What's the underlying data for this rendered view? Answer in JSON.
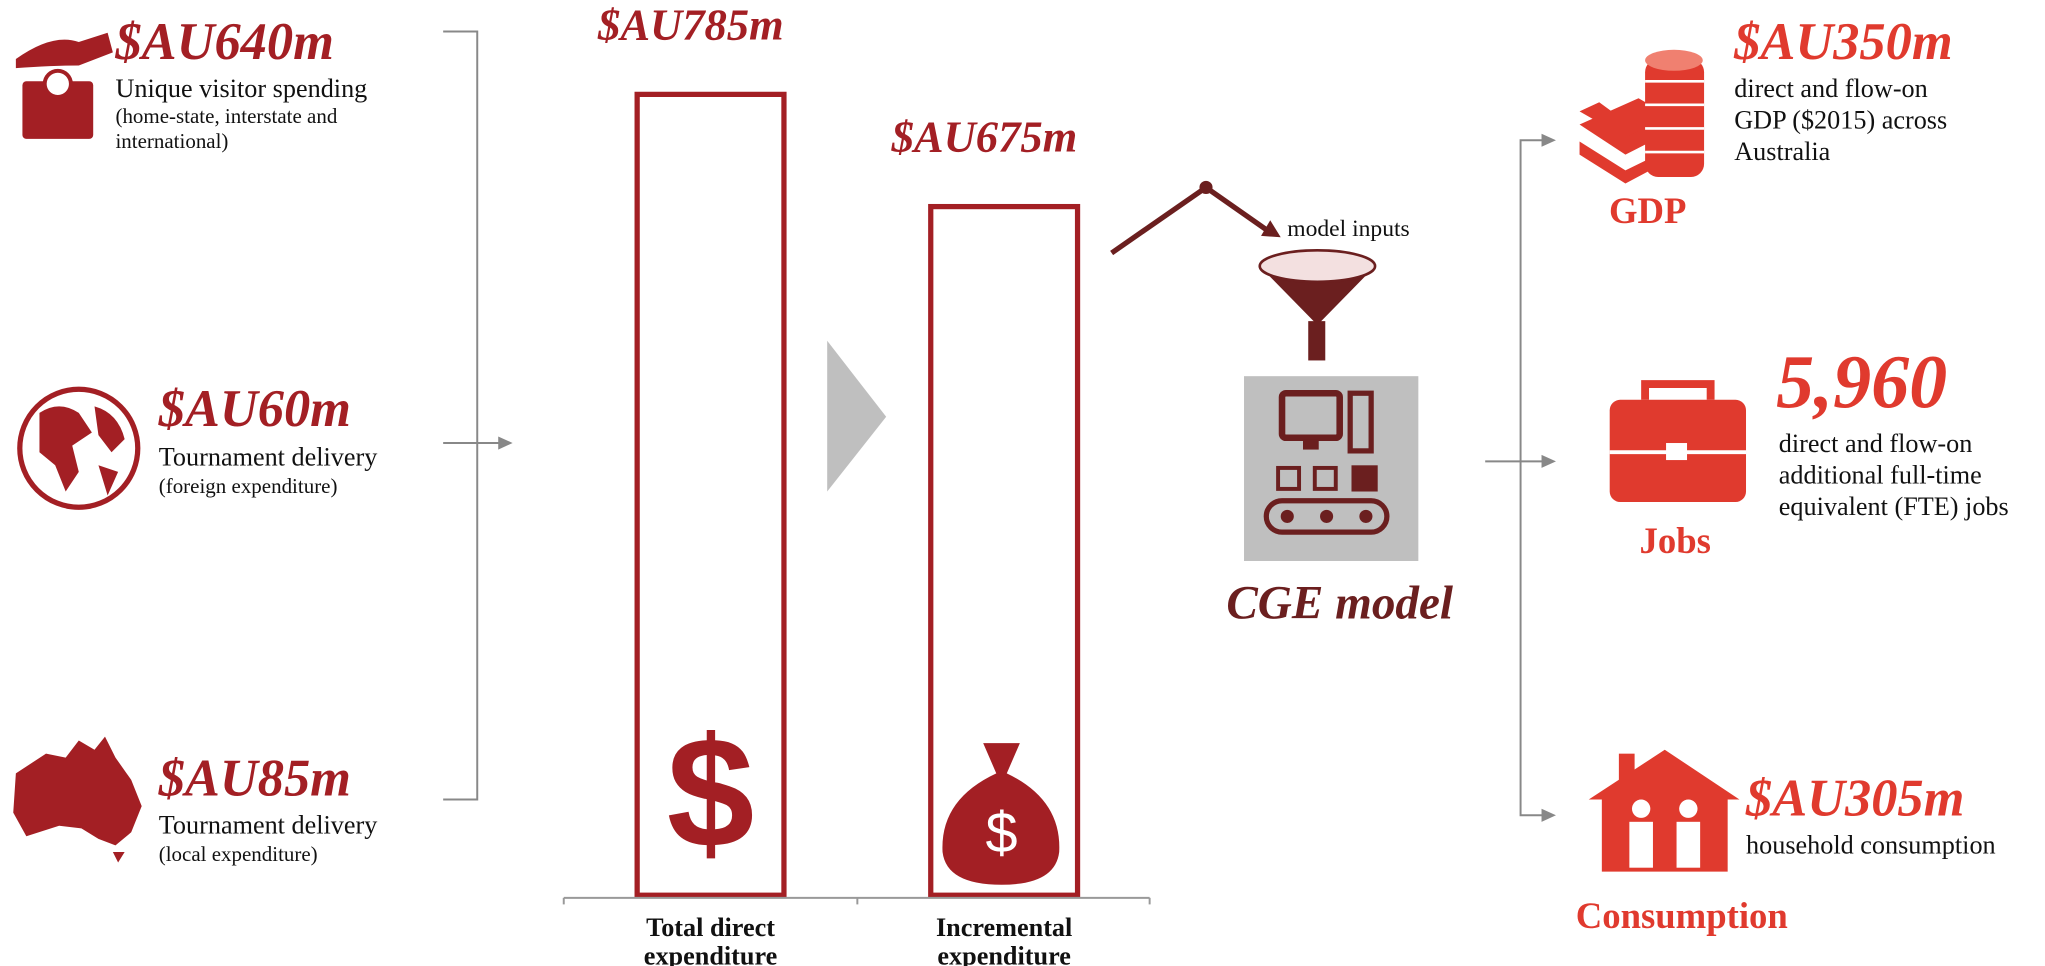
{
  "inputs": [
    {
      "amount": "$AU640m",
      "label": "Unique visitor spending",
      "note": [
        "(home-state, interstate and",
        "international)"
      ]
    },
    {
      "amount": "$AU60m",
      "label": "Tournament delivery",
      "note": [
        "(foreign expenditure)"
      ]
    },
    {
      "amount": "$AU85m",
      "label": "Tournament delivery",
      "note": [
        "(local expenditure)"
      ]
    }
  ],
  "bars": [
    {
      "value": 785,
      "label": "$AU785m",
      "category": [
        "Total direct",
        "expenditure"
      ]
    },
    {
      "value": 675,
      "label": "$AU675m",
      "category": [
        "Incremental",
        "expenditure"
      ]
    }
  ],
  "model": {
    "inputs_label": "model inputs",
    "title": "CGE model"
  },
  "outputs": [
    {
      "amount": "$AU350m",
      "text": [
        "direct and flow-on",
        "GDP ($2015) across",
        "Australia"
      ],
      "label": "GDP"
    },
    {
      "amount": "5,960",
      "text": [
        "direct and flow-on",
        "additional full-time",
        "equivalent (FTE) jobs"
      ],
      "label": "Jobs"
    },
    {
      "amount": "$AU305m",
      "text": [
        "household consumption"
      ],
      "label": "Consumption"
    }
  ]
}
